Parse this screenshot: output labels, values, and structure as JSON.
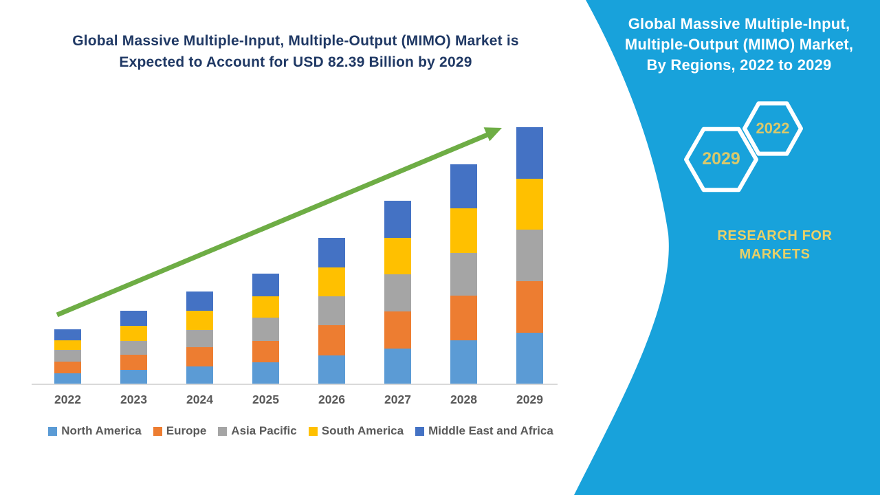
{
  "main_title": {
    "lines": [
      "Global Massive Multiple-Input, Multiple-Output (MIMO) Market is",
      "Expected to Account for USD 82.39 Billion by 2029"
    ],
    "text": "Global Massive Multiple-Input, Multiple-Output (MIMO) Market is Expected to Account for USD 82.39 Billion by 2029"
  },
  "panel": {
    "title_lines": [
      "Global Massive Multiple-Input,",
      "Multiple-Output (MIMO) Market,",
      "By Regions, 2022 to 2029"
    ],
    "hexagons": [
      {
        "label": "2029"
      },
      {
        "label": "2022"
      }
    ],
    "brand_lines": [
      "RESEARCH FOR",
      "MARKETS"
    ]
  },
  "chart_data": {
    "type": "bar",
    "stacked": true,
    "title": "Global Massive Multiple-Input, Multiple-Output (MIMO) Market is Expected to Account for USD 82.39 Billion by 2029",
    "unit": "USD Billion",
    "categories": [
      "2022",
      "2023",
      "2024",
      "2025",
      "2026",
      "2027",
      "2028",
      "2029"
    ],
    "series": [
      {
        "name": "North America",
        "color": "#5B9BD5",
        "values": [
          3.3,
          4.4,
          5.5,
          6.8,
          9.0,
          11.3,
          13.9,
          16.3
        ]
      },
      {
        "name": "Europe",
        "color": "#ED7D31",
        "values": [
          3.7,
          4.8,
          6.1,
          6.8,
          9.7,
          11.8,
          14.4,
          16.6
        ]
      },
      {
        "name": "Asia Pacific",
        "color": "#A5A5A5",
        "values": [
          3.9,
          4.4,
          5.7,
          7.6,
          9.3,
          12.0,
          13.7,
          16.6
        ]
      },
      {
        "name": "South America",
        "color": "#FFC000",
        "values": [
          3.1,
          5.0,
          6.1,
          6.8,
          9.3,
          11.8,
          14.3,
          16.3
        ]
      },
      {
        "name": "Middle East and Africa",
        "color": "#4472C4",
        "values": [
          3.5,
          4.9,
          6.1,
          7.4,
          9.6,
          11.9,
          14.2,
          16.6
        ]
      }
    ],
    "totals": [
      17.5,
      23.5,
      29.5,
      35.4,
      46.9,
      58.8,
      70.5,
      82.39
    ],
    "ylim": [
      0,
      90
    ],
    "grid": false,
    "legend_position": "bottom",
    "trend_arrow": true
  },
  "colors": {
    "panel_background": "#18A2DB",
    "title_navy": "#1F3864",
    "axis_gray": "#D9D9D9",
    "label_gray": "#595959",
    "arrow_green": "#6EAD45",
    "hexagon_year_gold": "#D9C86B",
    "brand_gold": "#EAD066",
    "hexagon_border": "#FFFFFF"
  }
}
